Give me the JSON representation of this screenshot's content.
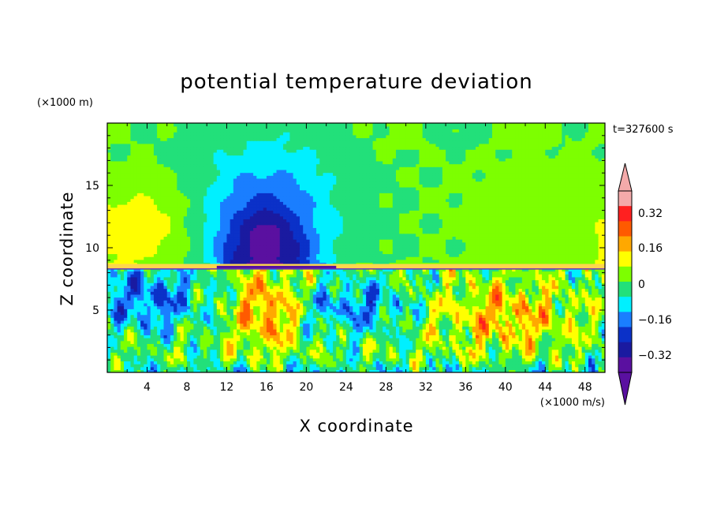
{
  "chart_data": {
    "type": "heatmap",
    "title": "potential temperature deviation",
    "xlabel": "X coordinate",
    "ylabel": "Z coordinate",
    "x_unit": "(×1000 m/s)",
    "y_unit": "(×1000 m)",
    "time_label": "t=327600 s",
    "xlim": [
      0,
      50
    ],
    "ylim": [
      0,
      20
    ],
    "x_ticks": [
      4,
      8,
      12,
      16,
      20,
      24,
      28,
      32,
      36,
      40,
      44,
      48
    ],
    "y_ticks": [
      5,
      10,
      15
    ],
    "colorbar": {
      "labels": [
        "0.32",
        "0.16",
        "0",
        "−0.16",
        "−0.32"
      ],
      "label_values": [
        0.32,
        0.16,
        0,
        -0.16,
        -0.32
      ],
      "levels": [
        -0.4,
        -0.32,
        -0.24,
        -0.16,
        -0.08,
        0,
        0.08,
        0.16,
        0.24,
        0.32,
        0.4
      ],
      "colors": [
        "#5a10a0",
        "#1a1aa0",
        "#0b31c8",
        "#1a7eff",
        "#00f0ff",
        "#22e07a",
        "#7dff00",
        "#ffff00",
        "#ffa800",
        "#ff5a00",
        "#ff2020",
        "#f4aaaa"
      ],
      "extend": "both"
    },
    "fields": {
      "upper_layer": "z > 8.3",
      "lower_layer": "z < 8.3"
    }
  }
}
